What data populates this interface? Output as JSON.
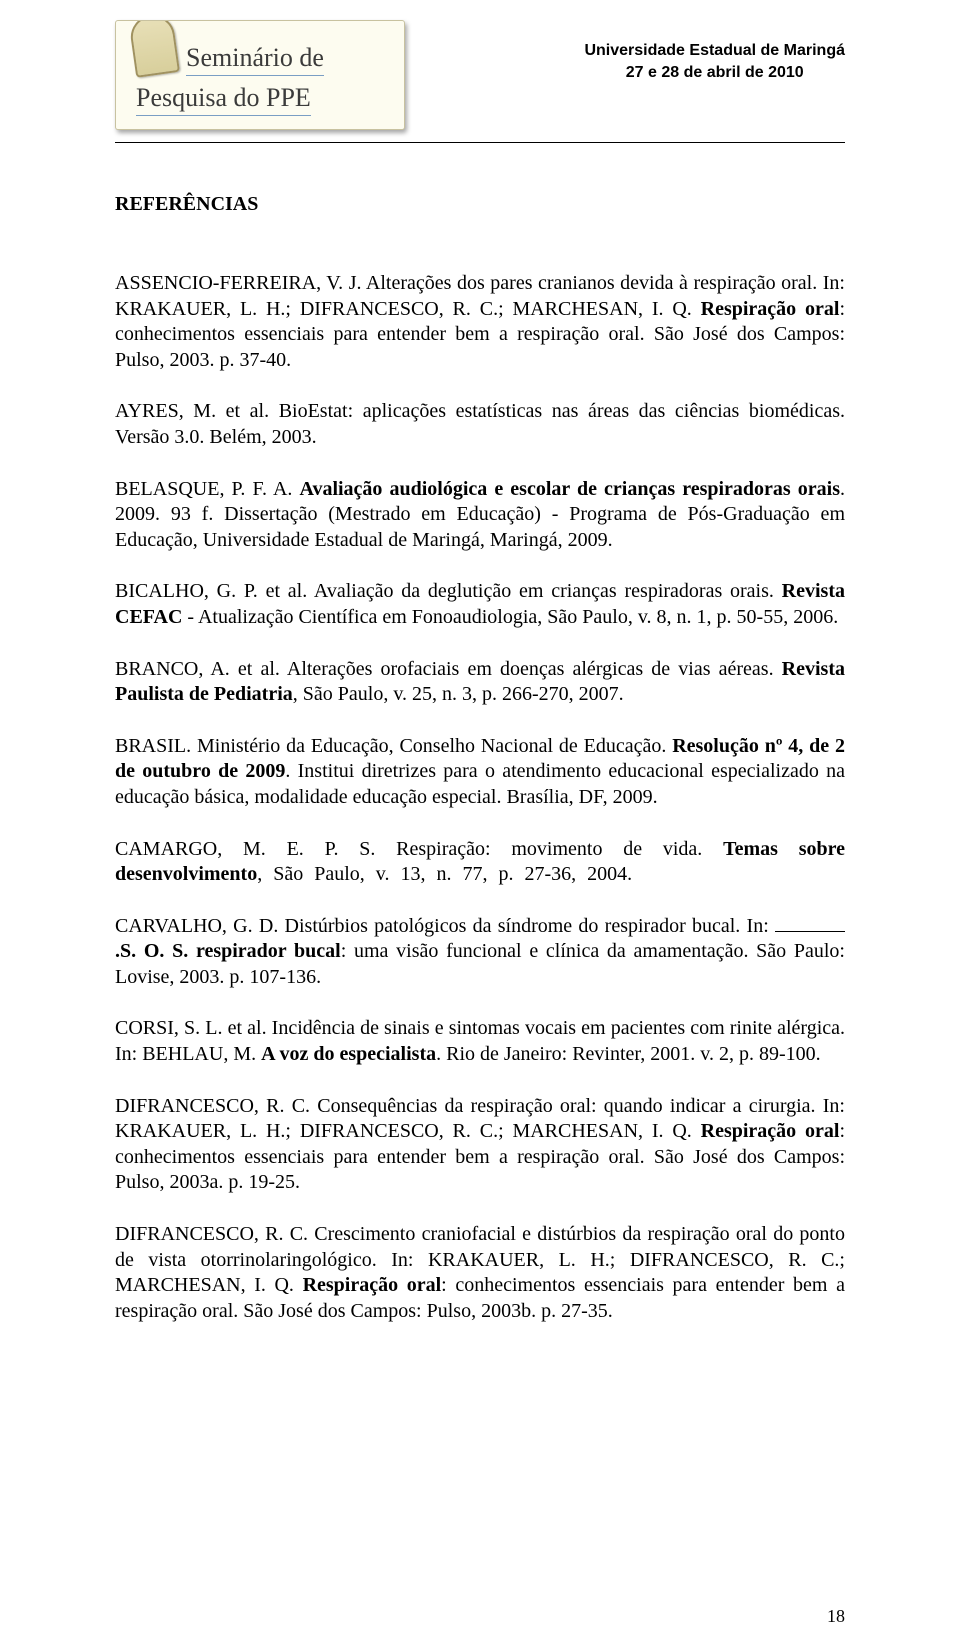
{
  "header": {
    "logo_line1": "Seminário de",
    "logo_line2": "Pesquisa do PPE",
    "university": "Universidade Estadual de Maringá",
    "dates": "27 e 28 de abril de 2010"
  },
  "section_title": "REFERÊNCIAS",
  "refs": {
    "r1a": "ASSENCIO-FERREIRA, V. J. Alterações dos pares cranianos devida à respiração oral. In: KRAKAUER, L. H.; DIFRANCESCO, R. C.; MARCHESAN, I. Q. ",
    "r1b": "Respiração oral",
    "r1c": ": conhecimentos essenciais para entender bem a respiração oral. São José dos Campos: Pulso, 2003. p. 37-40.",
    "r2": "AYRES, M. et al. BioEstat: aplicações estatísticas nas áreas das ciências biomédicas. Versão 3.0. Belém, 2003.",
    "r3a": "BELASQUE, P. F. A. ",
    "r3b": "Avaliação audiológica e escolar de crianças respiradoras orais",
    "r3c": ". 2009. 93 f. Dissertação (Mestrado em Educação) - Programa de Pós-Graduação em Educação, Universidade Estadual de Maringá, Maringá, 2009.",
    "r4a": "BICALHO, G. P. et al. Avaliação da deglutição em crianças respiradoras orais. ",
    "r4b": "Revista CEFAC",
    "r4c": " - Atualização Científica em Fonoaudiologia, São Paulo, v. 8, n. 1, p. 50-55, 2006.",
    "r5a": "BRANCO, A. et al. Alterações orofaciais em doenças alérgicas de vias aéreas. ",
    "r5b": "Revista Paulista de Pediatria",
    "r5c": ", São Paulo, v. 25, n. 3, p. 266-270, 2007.",
    "r6a": "BRASIL. Ministério da Educação, Conselho Nacional de Educação. ",
    "r6b": "Resolução nº 4, de 2 de outubro de 2009",
    "r6c": ". Institui diretrizes para o atendimento educacional especializado na educação básica, modalidade educação especial. Brasília, DF, 2009.",
    "r7a": "CAMARGO, M. E. P. S. Respiração: movimento de vida. ",
    "r7b": "Temas sobre desenvolvimento",
    "r7c": ", São Paulo, v. 13, n. 77, p. 27-36, 2004.",
    "r8a": "CARVALHO, G. D. Distúrbios patológicos da síndrome do respirador bucal. In: ",
    "r8b": ".S. O. S. respirador bucal",
    "r8c": ": uma visão funcional e clínica da amamentação. São Paulo: Lovise, 2003. p. 107-136.",
    "r9a": "CORSI, S. L. et al. Incidência de sinais e sintomas vocais em pacientes com rinite alérgica. In: BEHLAU, M. ",
    "r9b": "A voz do especialista",
    "r9c": ". Rio de Janeiro: Revinter, 2001. v. 2, p. 89-100.",
    "r10a": "DIFRANCESCO, R. C. Consequências da respiração oral: quando indicar a cirurgia. In: KRAKAUER, L. H.; DIFRANCESCO, R. C.; MARCHESAN, I. Q. ",
    "r10b": "Respiração oral",
    "r10c": ": conhecimentos essenciais para entender bem a respiração oral. São José dos Campos: Pulso, 2003a. p. 19-25.",
    "r11a": "DIFRANCESCO, R. C. Crescimento craniofacial e distúrbios da respiração oral do ponto de vista otorrinolaringológico. In: KRAKAUER, L. H.; DIFRANCESCO, R. C.; MARCHESAN, I. Q. ",
    "r11b": "Respiração oral",
    "r11c": ": conhecimentos essenciais para entender bem a respiração oral. São José dos Campos: Pulso, 2003b. p. 27-35."
  },
  "page_number": "18",
  "colors": {
    "text": "#000000",
    "bg": "#ffffff",
    "rule": "#000000",
    "note_bg": "#fdfcf0",
    "note_border": "#c8c2a0",
    "note_line": "#7a9ec4"
  },
  "fonts": {
    "body_family": "Times New Roman",
    "body_size_pt": 12,
    "header_family": "Verdana",
    "header_size_pt": 10,
    "logo_family": "cursive"
  }
}
